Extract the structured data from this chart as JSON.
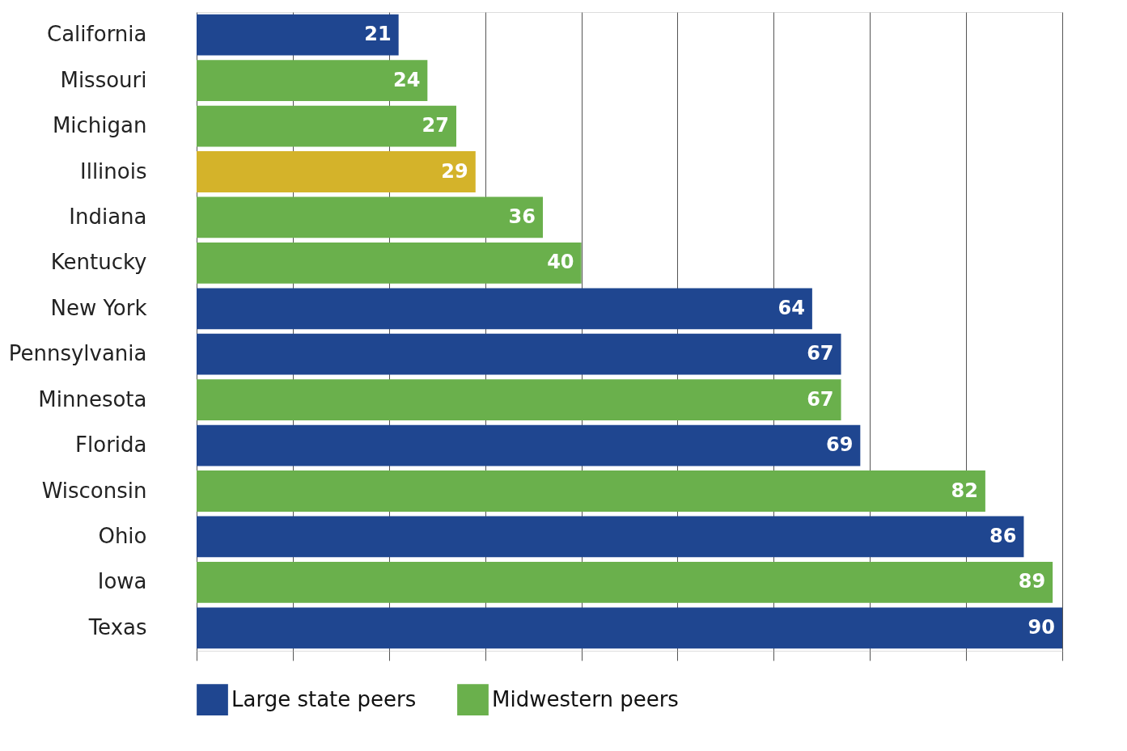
{
  "chart_data": {
    "type": "bar",
    "orientation": "horizontal",
    "categories": [
      "California",
      "Missouri",
      "Michigan",
      "Illinois",
      "Indiana",
      "Kentucky",
      "New York",
      "Pennsylvania",
      "Minnesota",
      "Florida",
      "Wisconsin",
      "Ohio",
      "Iowa",
      "Texas"
    ],
    "series": [
      {
        "name": "Large state peers",
        "color": "#1f4690",
        "values": [
          21,
          null,
          null,
          null,
          null,
          null,
          64,
          67,
          null,
          69,
          null,
          86,
          null,
          90
        ]
      },
      {
        "name": "Midwestern peers",
        "color": "#6ab04c",
        "values": [
          null,
          24,
          27,
          null,
          36,
          40,
          null,
          null,
          67,
          null,
          82,
          null,
          89,
          null
        ]
      },
      {
        "color": "#d4b32a",
        "values": [
          null,
          null,
          null,
          29,
          null,
          null,
          null,
          null,
          null,
          null,
          null,
          null,
          null,
          null
        ]
      }
    ],
    "xlim": [
      0,
      90
    ],
    "xticks": [
      {
        "value": 0,
        "label": null
      },
      {
        "value": 10,
        "label": null
      },
      {
        "value": 20,
        "label": null
      },
      {
        "value": 30,
        "label": null
      },
      {
        "value": 40,
        "label": null
      },
      {
        "value": 50,
        "label": null
      },
      {
        "value": 60,
        "label": null
      },
      {
        "value": 70,
        "label": null
      },
      {
        "value": 80,
        "label": null
      },
      {
        "value": 90,
        "label": null
      }
    ],
    "grid": "x",
    "tick_labels": "y",
    "data_labels": true,
    "legend": "bottom left"
  }
}
